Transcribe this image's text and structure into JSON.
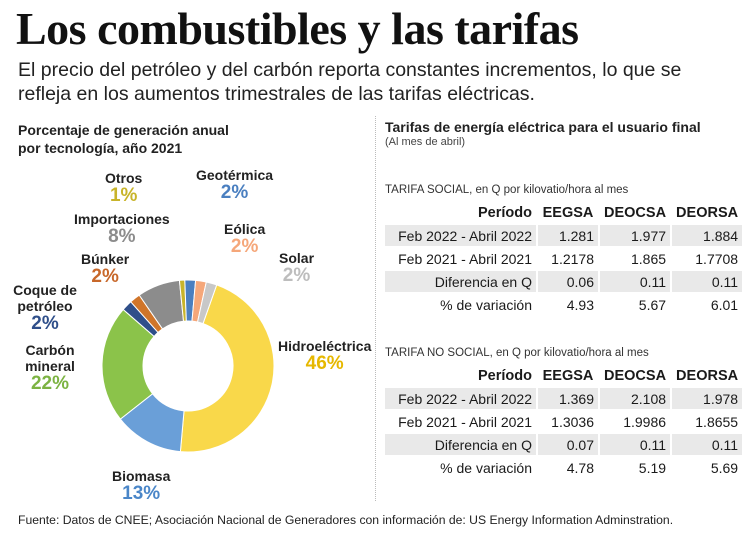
{
  "title": "Los combustibles y las tarifas",
  "subtitle": "El precio del petróleo y del carbón reporta constantes incrementos, lo que se refleja en los aumentos trimestrales de las tarifas eléctricas.",
  "chart_data": [
    {
      "type": "pie",
      "title_line1": "Porcentaje de generación anual",
      "title_line2": "por tecnología, año 2021",
      "slices": [
        {
          "name": "Hidroeléctrica",
          "label": "46%",
          "value": 46,
          "color": "#f9d84a",
          "label_color": "#e6b800"
        },
        {
          "name": "Biomasa",
          "label": "13%",
          "value": 13,
          "color": "#6a9fd8",
          "label_color": "#4a86c8"
        },
        {
          "name": "Carbón mineral",
          "label": "22%",
          "value": 22,
          "color": "#8bc34a",
          "label_color": "#7cb342"
        },
        {
          "name": "Coque de petróleo",
          "label": "2%",
          "value": 2,
          "color": "#2f4f8a",
          "label_color": "#2f4f8a"
        },
        {
          "name": "Búnker",
          "label": "2%",
          "value": 2,
          "color": "#d0752a",
          "label_color": "#c8682a"
        },
        {
          "name": "Importaciones",
          "label": "8%",
          "value": 8,
          "color": "#8c8c8c",
          "label_color": "#8c8c8c"
        },
        {
          "name": "Otros",
          "label": "1%",
          "value": 1,
          "color": "#c8b42a",
          "label_color": "#c8b42a"
        },
        {
          "name": "Geotérmica",
          "label": "2%",
          "value": 2,
          "color": "#4a7fc0",
          "label_color": "#4a7fc0"
        },
        {
          "name": "Eólica",
          "label": "2%",
          "value": 2,
          "color": "#f5a77a",
          "label_color": "#f5a77a"
        },
        {
          "name": "Solar",
          "label": "2%",
          "value": 2,
          "color": "#c8c8c8",
          "label_color": "#bdbdbd"
        }
      ]
    },
    {
      "type": "table",
      "title": "Tarifas de energía eléctrica para el usuario final",
      "note": "(Al mes de abril)",
      "tables": [
        {
          "caption": "TARIFA SOCIAL, en Q por kilovatio/hora al mes",
          "columns": [
            "Período",
            "EEGSA",
            "DEOCSA",
            "DEORSA"
          ],
          "rows": [
            [
              "Feb 2022 - Abril 2022",
              "1.281",
              "1.977",
              "1.884"
            ],
            [
              "Feb 2021 - Abril 2021",
              "1.2178",
              "1.865",
              "1.7708"
            ],
            [
              "Diferencia en Q",
              "0.06",
              "0.11",
              "0.11"
            ],
            [
              "% de variación",
              "4.93",
              "5.67",
              "6.01"
            ]
          ]
        },
        {
          "caption": "TARIFA NO SOCIAL, en Q por kilovatio/hora al mes",
          "columns": [
            "Período",
            "EEGSA",
            "DEOCSA",
            "DEORSA"
          ],
          "rows": [
            [
              "Feb 2022 - Abril 2022",
              "1.369",
              "2.108",
              "1.978"
            ],
            [
              "Feb 2021 - Abril 2021",
              "1.3036",
              "1.9986",
              "1.8655"
            ],
            [
              "Diferencia en Q",
              "0.07",
              "0.11",
              "0.11"
            ],
            [
              "% de variación",
              "4.78",
              "5.19",
              "5.69"
            ]
          ]
        }
      ]
    }
  ],
  "footer": "Fuente: Datos de CNEE; Asociación Nacional de Generadores con información de: US Energy Information Adminstration."
}
